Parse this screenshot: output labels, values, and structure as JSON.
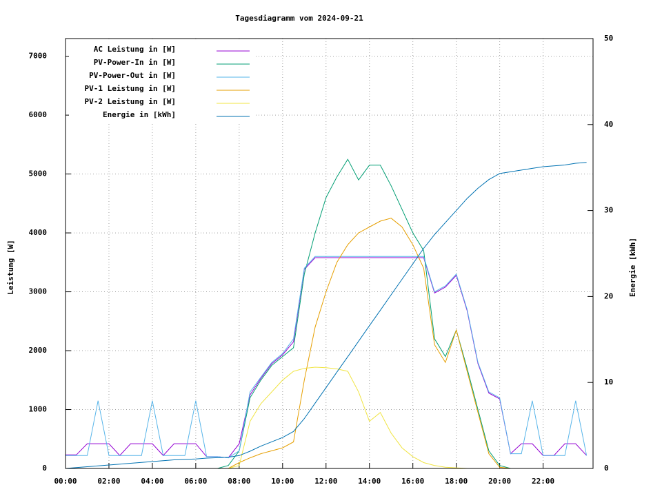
{
  "chart_data": {
    "type": "line",
    "title": "Tagesdiagramm vom 2024-09-21",
    "y_label": "Leistung [W]",
    "y2_label": "Energie [kWh]",
    "x": [
      0,
      0.5,
      1,
      1.5,
      2,
      2.5,
      3,
      3.5,
      4,
      4.5,
      5,
      5.5,
      6,
      6.5,
      7,
      7.5,
      8,
      8.5,
      9,
      9.5,
      10,
      10.5,
      11,
      11.5,
      12,
      12.5,
      13,
      13.5,
      14,
      14.5,
      15,
      15.5,
      16,
      16.5,
      17,
      17.5,
      18,
      18.5,
      19,
      19.5,
      20,
      20.5,
      21,
      21.5,
      22,
      22.5,
      23,
      23.5,
      24
    ],
    "xlim": [
      0,
      24.3
    ],
    "xticks": [
      {
        "value": 0,
        "label": "00:00"
      },
      {
        "value": 2,
        "label": "02:00"
      },
      {
        "value": 4,
        "label": "04:00"
      },
      {
        "value": 6,
        "label": "06:00"
      },
      {
        "value": 8,
        "label": "08:00"
      },
      {
        "value": 10,
        "label": "10:00"
      },
      {
        "value": 12,
        "label": "12:00"
      },
      {
        "value": 14,
        "label": "14:00"
      },
      {
        "value": 16,
        "label": "16:00"
      },
      {
        "value": 18,
        "label": "18:00"
      },
      {
        "value": 20,
        "label": "20:00"
      },
      {
        "value": 22,
        "label": "22:00"
      }
    ],
    "ylim": [
      0,
      7300
    ],
    "yticks": [
      0,
      1000,
      2000,
      3000,
      4000,
      5000,
      6000,
      7000
    ],
    "y2lim": [
      0,
      50
    ],
    "y2ticks": [
      0,
      10,
      20,
      30,
      40,
      50
    ],
    "grid": true,
    "legend": "top-left",
    "series": [
      {
        "name": "AC Leistung in [W]",
        "color": "#9400d3",
        "values": [
          230,
          230,
          420,
          420,
          420,
          220,
          420,
          420,
          420,
          220,
          420,
          420,
          420,
          200,
          200,
          180,
          420,
          1250,
          1530,
          1780,
          1930,
          2150,
          3380,
          3580,
          3580,
          3580,
          3580,
          3580,
          3580,
          3580,
          3580,
          3580,
          3580,
          3580,
          2980,
          3080,
          3280,
          2680,
          1780,
          1280,
          1180,
          250,
          420,
          420,
          220,
          220,
          420,
          420,
          220
        ]
      },
      {
        "name": "PV-Power-In in [W]",
        "color": "#009e73",
        "values": [
          0,
          0,
          0,
          0,
          0,
          0,
          0,
          0,
          0,
          0,
          0,
          0,
          0,
          0,
          0,
          50,
          300,
          1200,
          1500,
          1750,
          1900,
          2050,
          3300,
          4000,
          4600,
          4950,
          5250,
          4900,
          5150,
          5150,
          4800,
          4400,
          4000,
          3700,
          2200,
          1900,
          2350,
          1700,
          1000,
          300,
          50,
          0,
          0,
          0,
          0,
          0,
          0,
          0,
          0
        ]
      },
      {
        "name": "PV-Power-Out in [W]",
        "color": "#56b4e9",
        "values": [
          220,
          220,
          220,
          1150,
          220,
          220,
          220,
          220,
          1150,
          220,
          220,
          220,
          1150,
          200,
          200,
          180,
          300,
          1300,
          1550,
          1800,
          1950,
          2200,
          3400,
          3600,
          3600,
          3600,
          3600,
          3600,
          3600,
          3600,
          3600,
          3600,
          3600,
          3600,
          3000,
          3100,
          3300,
          2700,
          1800,
          1300,
          1200,
          250,
          250,
          1150,
          220,
          220,
          220,
          1150,
          220
        ]
      },
      {
        "name": "PV-1 Leistung in [W]",
        "color": "#e69f00",
        "values": [
          0,
          0,
          0,
          0,
          0,
          0,
          0,
          0,
          0,
          0,
          0,
          0,
          0,
          0,
          0,
          0,
          100,
          180,
          250,
          300,
          350,
          450,
          1500,
          2400,
          3000,
          3500,
          3800,
          4000,
          4100,
          4200,
          4250,
          4100,
          3800,
          3400,
          2100,
          1800,
          2350,
          1650,
          950,
          250,
          20,
          0,
          0,
          0,
          0,
          0,
          0,
          0,
          0
        ]
      },
      {
        "name": "PV-2 Leistung in [W]",
        "color": "#f0e442",
        "values": [
          0,
          0,
          0,
          0,
          0,
          0,
          0,
          0,
          0,
          0,
          0,
          0,
          0,
          0,
          0,
          0,
          50,
          800,
          1100,
          1300,
          1500,
          1650,
          1700,
          1720,
          1710,
          1690,
          1650,
          1300,
          800,
          950,
          600,
          350,
          200,
          100,
          50,
          20,
          10,
          0,
          0,
          0,
          0,
          0,
          0,
          0,
          0,
          0,
          0,
          0,
          0
        ]
      },
      {
        "name": "Energie in [kWh]",
        "color": "#0072b2",
        "axis": "y2",
        "values": [
          0,
          0.1,
          0.2,
          0.3,
          0.4,
          0.5,
          0.6,
          0.7,
          0.8,
          0.9,
          1.0,
          1.05,
          1.1,
          1.2,
          1.25,
          1.3,
          1.5,
          2.0,
          2.6,
          3.1,
          3.6,
          4.3,
          5.8,
          7.6,
          9.4,
          11.2,
          13.0,
          14.8,
          16.6,
          18.4,
          20.2,
          22.0,
          23.8,
          25.6,
          27.2,
          28.6,
          30.0,
          31.4,
          32.6,
          33.6,
          34.3,
          34.5,
          34.7,
          34.9,
          35.1,
          35.2,
          35.3,
          35.5,
          35.6
        ]
      }
    ]
  }
}
